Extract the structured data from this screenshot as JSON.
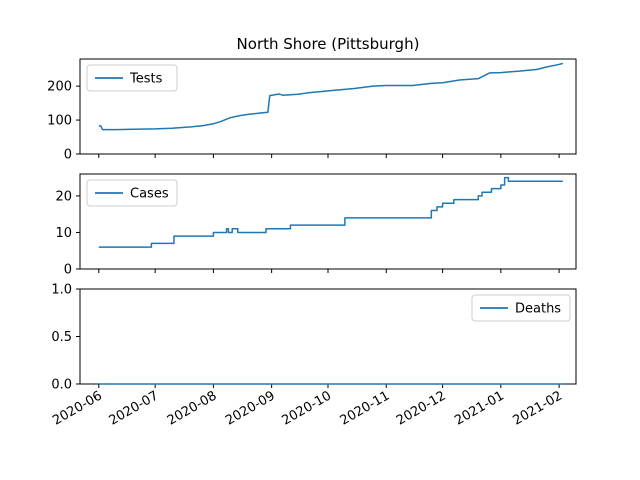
{
  "title": "North Shore (Pittsburgh)",
  "chart_data": {
    "type": "line",
    "title": "North Shore (Pittsburgh)",
    "x_tick_labels": [
      "2020-06",
      "2020-07",
      "2020-08",
      "2020-09",
      "2020-10",
      "2020-11",
      "2020-12",
      "2021-01",
      "2021-02"
    ],
    "color": "#1f77b4",
    "shared_x_range": [
      "2020-05-22",
      "2021-02-10"
    ],
    "panels": [
      {
        "legend": "Tests",
        "legend_position": "upper-left",
        "ylim": [
          0,
          280
        ],
        "yticks": [
          0,
          100,
          200
        ],
        "series": {
          "name": "Tests",
          "x": [
            "2020-06-01",
            "2020-06-02",
            "2020-06-03",
            "2020-06-10",
            "2020-06-20",
            "2020-07-01",
            "2020-07-10",
            "2020-07-20",
            "2020-07-27",
            "2020-08-01",
            "2020-08-05",
            "2020-08-10",
            "2020-08-15",
            "2020-08-20",
            "2020-08-25",
            "2020-08-30",
            "2020-08-31",
            "2020-09-05",
            "2020-09-07",
            "2020-09-15",
            "2020-09-20",
            "2020-10-01",
            "2020-10-15",
            "2020-10-25",
            "2020-11-01",
            "2020-11-15",
            "2020-11-25",
            "2020-12-01",
            "2020-12-10",
            "2020-12-20",
            "2020-12-26",
            "2021-01-01",
            "2021-01-10",
            "2021-01-20",
            "2021-01-25",
            "2021-02-01",
            "2021-02-03"
          ],
          "values": [
            83,
            83,
            72,
            72,
            73,
            74,
            76,
            80,
            84,
            89,
            96,
            107,
            113,
            117,
            120,
            123,
            172,
            177,
            173,
            176,
            180,
            186,
            193,
            200,
            202,
            202,
            208,
            210,
            218,
            222,
            239,
            240,
            244,
            249,
            256,
            264,
            267
          ]
        }
      },
      {
        "legend": "Cases",
        "legend_position": "upper-left",
        "ylim": [
          0,
          26
        ],
        "yticks": [
          0,
          10,
          20
        ],
        "series": {
          "name": "Cases",
          "x": [
            "2020-06-01",
            "2020-06-29",
            "2020-06-29",
            "2020-07-11",
            "2020-07-11",
            "2020-08-01",
            "2020-08-01",
            "2020-08-08",
            "2020-08-08",
            "2020-08-09",
            "2020-08-09",
            "2020-08-11",
            "2020-08-11",
            "2020-08-14",
            "2020-08-14",
            "2020-08-29",
            "2020-08-29",
            "2020-09-11",
            "2020-09-11",
            "2020-10-10",
            "2020-10-10",
            "2020-11-25",
            "2020-11-25",
            "2020-11-28",
            "2020-11-28",
            "2020-12-01",
            "2020-12-01",
            "2020-12-07",
            "2020-12-07",
            "2020-12-20",
            "2020-12-20",
            "2020-12-22",
            "2020-12-22",
            "2020-12-27",
            "2020-12-27",
            "2021-01-01",
            "2021-01-01",
            "2021-01-03",
            "2021-01-03",
            "2021-01-05",
            "2021-01-05",
            "2021-01-06",
            "2021-01-06",
            "2021-02-03"
          ],
          "values": [
            6,
            6,
            7,
            7,
            9,
            9,
            10,
            10,
            11,
            11,
            10,
            10,
            11,
            11,
            10,
            10,
            11,
            11,
            12,
            12,
            14,
            14,
            16,
            16,
            17,
            17,
            18,
            18,
            19,
            19,
            20,
            20,
            21,
            21,
            22,
            22,
            23,
            23,
            25,
            25,
            24,
            24,
            24,
            24
          ]
        }
      },
      {
        "legend": "Deaths",
        "legend_position": "upper-right",
        "ylim": [
          0,
          1.0
        ],
        "yticks": [
          0.0,
          0.5,
          1.0
        ],
        "ytick_labels": [
          "0.0",
          "0.5",
          "1.0"
        ],
        "series": {
          "name": "Deaths",
          "x": [
            "2020-06-01",
            "2021-02-03"
          ],
          "values": [
            0,
            0
          ]
        }
      }
    ]
  }
}
